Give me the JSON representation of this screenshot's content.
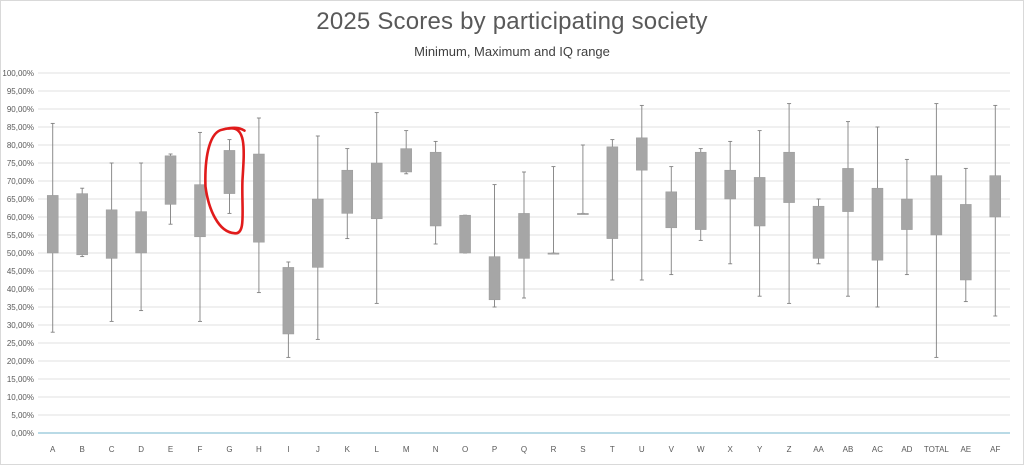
{
  "chart_data": {
    "type": "box",
    "title": "2025 Scores by participating society",
    "subtitle": "Minimum, Maximum and IQ range",
    "ylim": [
      0,
      100
    ],
    "y_tick_values": [
      0,
      5,
      10,
      15,
      20,
      25,
      30,
      35,
      40,
      45,
      50,
      55,
      60,
      65,
      70,
      75,
      80,
      85,
      90,
      95,
      100
    ],
    "y_tick_labels": [
      "0,00%",
      "5,00%",
      "10,00%",
      "15,00%",
      "20,00%",
      "25,00%",
      "30,00%",
      "35,00%",
      "40,00%",
      "45,00%",
      "50,00%",
      "55,00%",
      "60,00%",
      "65,00%",
      "70,00%",
      "75,00%",
      "80,00%",
      "85,00%",
      "90,00%",
      "95,00%",
      "100,00%"
    ],
    "grid": true,
    "categories": [
      "A",
      "B",
      "C",
      "D",
      "E",
      "F",
      "G",
      "H",
      "I",
      "J",
      "K",
      "L",
      "M",
      "N",
      "O",
      "P",
      "Q",
      "R",
      "S",
      "T",
      "U",
      "V",
      "W",
      "X",
      "Y",
      "Z",
      "AA",
      "AB",
      "AC",
      "AD",
      "TOTAL",
      "AE",
      "AF"
    ],
    "min": [
      28.0,
      49.0,
      31.0,
      34.0,
      58.0,
      31.0,
      61.0,
      39.0,
      21.0,
      26.0,
      54.0,
      36.0,
      72.0,
      52.5,
      50.0,
      35.0,
      37.5,
      50.0,
      61.0,
      42.5,
      42.5,
      44.0,
      53.5,
      47.0,
      38.0,
      36.0,
      47.0,
      38.0,
      35.0,
      44.0,
      21.0,
      36.5,
      32.5
    ],
    "q1": [
      50.0,
      49.5,
      48.5,
      50.0,
      63.5,
      54.5,
      66.5,
      53.0,
      27.5,
      46.0,
      61.0,
      59.5,
      72.5,
      57.5,
      50.0,
      37.0,
      48.5,
      50.0,
      61.0,
      54.0,
      73.0,
      57.0,
      56.5,
      65.0,
      57.5,
      64.0,
      48.5,
      61.5,
      48.0,
      56.5,
      55.0,
      42.5,
      60.0
    ],
    "q3": [
      66.0,
      66.5,
      62.0,
      61.5,
      77.0,
      69.0,
      78.5,
      77.5,
      46.0,
      65.0,
      73.0,
      75.0,
      79.0,
      78.0,
      60.5,
      49.0,
      61.0,
      50.0,
      61.0,
      79.5,
      82.0,
      67.0,
      78.0,
      73.0,
      71.0,
      78.0,
      63.0,
      73.5,
      68.0,
      65.0,
      71.5,
      63.5,
      71.5
    ],
    "max": [
      86.0,
      68.0,
      75.0,
      75.0,
      77.5,
      83.5,
      81.5,
      87.5,
      47.5,
      82.5,
      79.0,
      89.0,
      84.0,
      81.0,
      60.5,
      69.0,
      72.5,
      74.0,
      80.0,
      81.5,
      91.0,
      74.0,
      79.0,
      81.0,
      84.0,
      91.5,
      65.0,
      86.5,
      85.0,
      76.0,
      91.5,
      73.5,
      91.0
    ],
    "annotation": {
      "type": "hand-drawn-circle",
      "target": "G",
      "color": "#e11b1b"
    }
  }
}
